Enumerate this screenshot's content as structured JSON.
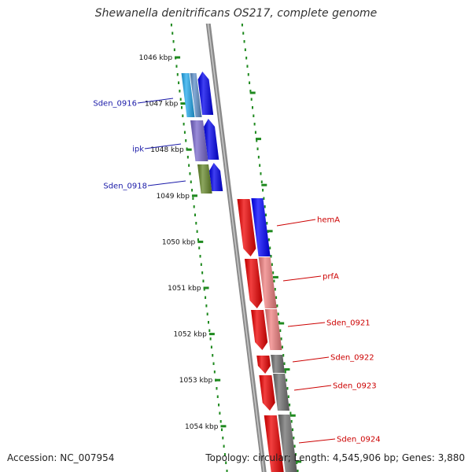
{
  "title": "Shewanella denitrificans OS217, complete genome",
  "footer": {
    "accession": "Accession: NC_007954",
    "summary": "Topology: circular; Length: 4,545,906 bp; Genes: 3,880"
  },
  "colors": {
    "scale_ticks": "#1f8a1f",
    "backbone": "#8a8a8a",
    "left_labels": "#1a1aa8",
    "right_labels": "#cc0000"
  },
  "scale_labels": [
    "1046 kbp",
    "1047 kbp",
    "1048 kbp",
    "1049 kbp",
    "1050 kbp",
    "1051 kbp",
    "1052 kbp",
    "1053 kbp",
    "1054 kbp"
  ],
  "genes_left": [
    {
      "label": "Sden_0916",
      "color": "#22aaee"
    },
    {
      "label": "ipk",
      "color": "#7766cc"
    },
    {
      "label": "Sden_0918",
      "color": "#66882a"
    }
  ],
  "genes_right": [
    {
      "label": "hemA",
      "color": "#0000ff"
    },
    {
      "label": "prfA",
      "color": "#f08080"
    },
    {
      "label": "Sden_0921",
      "color": "#f08080"
    },
    {
      "label": "Sden_0922",
      "color": "#707070"
    },
    {
      "label": "Sden_0923",
      "color": "#707070"
    },
    {
      "label": "Sden_0924",
      "color": "#707070"
    }
  ]
}
